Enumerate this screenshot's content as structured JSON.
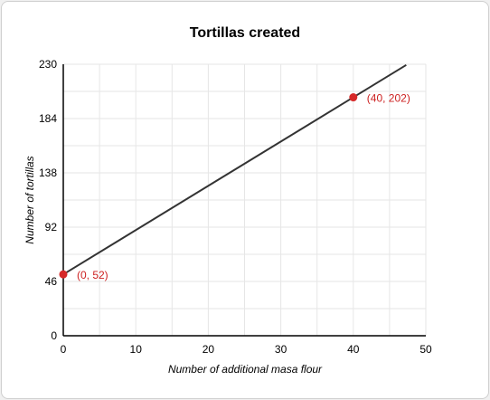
{
  "chart_data": {
    "type": "line",
    "title": "Tortillas created",
    "xlabel": "Number of additional masa flour",
    "ylabel": "Number of tortillas",
    "xlim": [
      0,
      50
    ],
    "ylim": [
      0,
      230
    ],
    "x_ticks": [
      0,
      10,
      20,
      30,
      40,
      50
    ],
    "y_ticks": [
      0,
      46,
      92,
      138,
      184,
      230
    ],
    "grid": true,
    "line": {
      "slope": 3.75,
      "intercept": 52,
      "x_range": [
        0,
        47.3
      ]
    },
    "points": [
      {
        "x": 0,
        "y": 52,
        "label": "(0, 52)"
      },
      {
        "x": 40,
        "y": 202,
        "label": "(40, 202)"
      }
    ],
    "colors": {
      "line": "#333333",
      "points": "#d62828",
      "point_labels": "#cc1f1f",
      "grid": "#e6e6e6",
      "axis": "#000000"
    }
  }
}
